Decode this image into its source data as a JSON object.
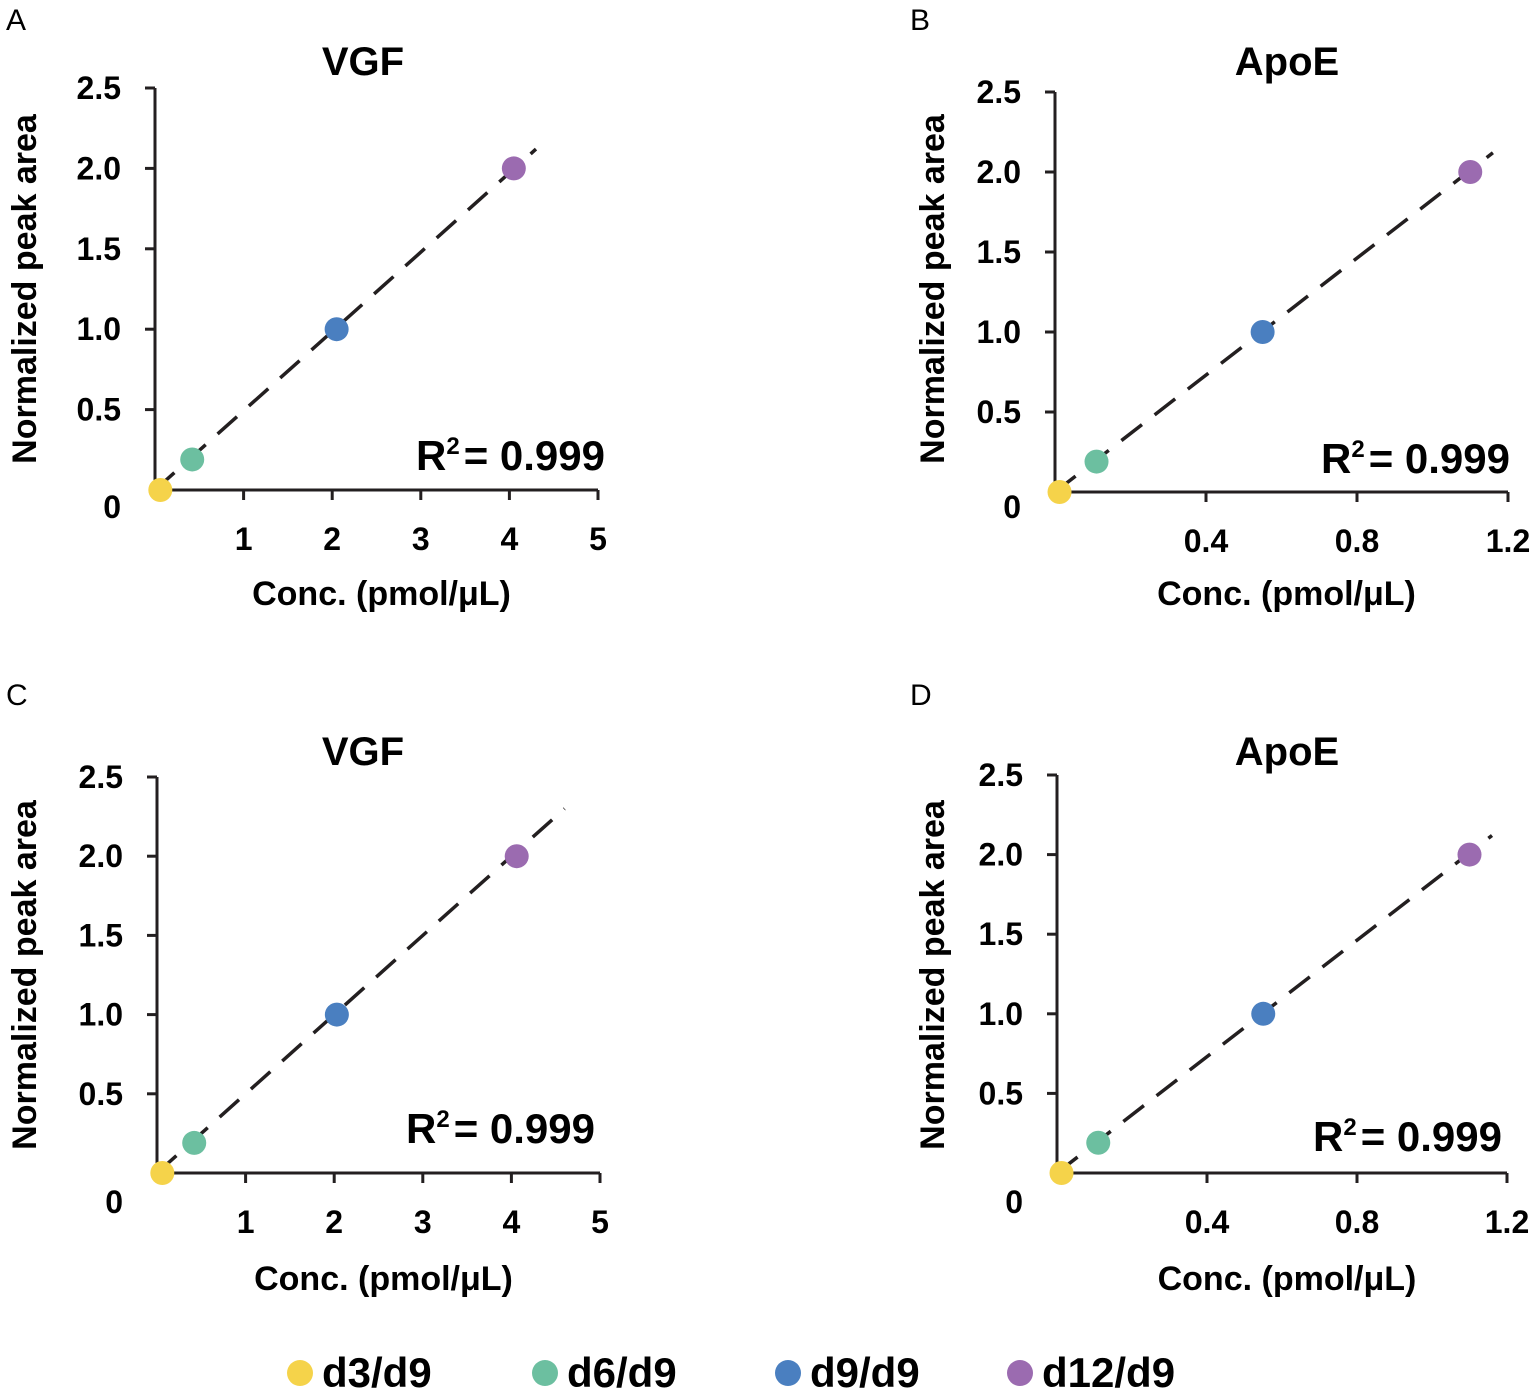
{
  "legend": [
    {
      "label": "d3/d9",
      "color": "#f5d34a"
    },
    {
      "label": "d6/d9",
      "color": "#6cbfa0"
    },
    {
      "label": "d9/d9",
      "color": "#4a7fc0"
    },
    {
      "label": "d12/d9",
      "color": "#9b6bb0"
    }
  ],
  "chart_data": [
    {
      "panel": "A",
      "type": "scatter",
      "title": "VGF",
      "xlabel": "Conc. (pmol/μL)",
      "ylabel": "Normalized peak area",
      "xlim": [
        0,
        5
      ],
      "ylim": [
        0,
        2.5
      ],
      "xticks": [
        1,
        2,
        3,
        4,
        5
      ],
      "xtick_labels": [
        "1",
        "2",
        "3",
        "4",
        "5"
      ],
      "yticks": [
        0,
        0.5,
        1.0,
        1.5,
        2.0,
        2.5
      ],
      "ytick_labels": [
        "0",
        "0.5",
        "1.0",
        "1.5",
        "2.0",
        "2.5"
      ],
      "r2_prefix": "R",
      "r2_sup": "2",
      "r2_value": "= 0.999",
      "fit_line": {
        "x": [
          0,
          4.3
        ],
        "y": [
          0,
          2.12
        ]
      },
      "points": [
        {
          "series": "d3/d9",
          "x": 0.06,
          "y": 0.0
        },
        {
          "series": "d6/d9",
          "x": 0.42,
          "y": 0.19
        },
        {
          "series": "d9/d9",
          "x": 2.05,
          "y": 1.0
        },
        {
          "series": "d12/d9",
          "x": 4.05,
          "y": 2.0
        }
      ]
    },
    {
      "panel": "B",
      "type": "scatter",
      "title": "ApoE",
      "xlabel": "Conc. (pmol/μL)",
      "ylabel": "Normalized peak area",
      "xlim": [
        0,
        1.2
      ],
      "ylim": [
        0,
        2.5
      ],
      "xticks": [
        0.4,
        0.8,
        1.2
      ],
      "xtick_labels": [
        "0.4",
        "0.8",
        "1.2"
      ],
      "yticks": [
        0,
        0.5,
        1.0,
        1.5,
        2.0,
        2.5
      ],
      "ytick_labels": [
        "0",
        "0.5",
        "1.0",
        "1.5",
        "2.0",
        "2.5"
      ],
      "r2_prefix": "R",
      "r2_sup": "2",
      "r2_value": "= 0.999",
      "fit_line": {
        "x": [
          0,
          1.16
        ],
        "y": [
          0,
          2.12
        ]
      },
      "points": [
        {
          "series": "d3/d9",
          "x": 0.012,
          "y": 0.0
        },
        {
          "series": "d6/d9",
          "x": 0.11,
          "y": 0.19
        },
        {
          "series": "d9/d9",
          "x": 0.55,
          "y": 1.0
        },
        {
          "series": "d12/d9",
          "x": 1.1,
          "y": 2.0
        }
      ]
    },
    {
      "panel": "C",
      "type": "scatter",
      "title": "VGF",
      "xlabel": "Conc. (pmol/μL)",
      "ylabel": "Normalized peak area",
      "xlim": [
        0,
        5
      ],
      "ylim": [
        0,
        2.5
      ],
      "xticks": [
        1,
        2,
        3,
        4,
        5
      ],
      "xtick_labels": [
        "1",
        "2",
        "3",
        "4",
        "5"
      ],
      "yticks": [
        0,
        0.5,
        1.0,
        1.5,
        2.0,
        2.5
      ],
      "ytick_labels": [
        "0",
        "0.5",
        "1.0",
        "1.5",
        "2.0",
        "2.5"
      ],
      "r2_prefix": "R",
      "r2_sup": "2",
      "r2_value": "= 0.999",
      "fit_line": {
        "x": [
          0,
          4.6
        ],
        "y": [
          0,
          2.3
        ]
      },
      "points": [
        {
          "series": "d3/d9",
          "x": 0.06,
          "y": 0.0
        },
        {
          "series": "d6/d9",
          "x": 0.42,
          "y": 0.19
        },
        {
          "series": "d9/d9",
          "x": 2.03,
          "y": 1.0
        },
        {
          "series": "d12/d9",
          "x": 4.06,
          "y": 2.0
        }
      ]
    },
    {
      "panel": "D",
      "type": "scatter",
      "title": "ApoE",
      "xlabel": "Conc. (pmol/μL)",
      "ylabel": "Normalized peak area",
      "xlim": [
        0,
        1.2
      ],
      "ylim": [
        0,
        2.5
      ],
      "xticks": [
        0.4,
        0.8,
        1.2
      ],
      "xtick_labels": [
        "0.4",
        "0.8",
        "1.2"
      ],
      "yticks": [
        0,
        0.5,
        1.0,
        1.5,
        2.0,
        2.5
      ],
      "ytick_labels": [
        "0",
        "0.5",
        "1.0",
        "1.5",
        "2.0",
        "2.5"
      ],
      "r2_prefix": "R",
      "r2_sup": "2",
      "r2_value": "= 0.999",
      "fit_line": {
        "x": [
          0,
          1.16
        ],
        "y": [
          0,
          2.12
        ]
      },
      "points": [
        {
          "series": "d3/d9",
          "x": 0.012,
          "y": 0.0
        },
        {
          "series": "d6/d9",
          "x": 0.11,
          "y": 0.19
        },
        {
          "series": "d9/d9",
          "x": 0.55,
          "y": 1.0
        },
        {
          "series": "d12/d9",
          "x": 1.1,
          "y": 2.0
        }
      ]
    }
  ]
}
